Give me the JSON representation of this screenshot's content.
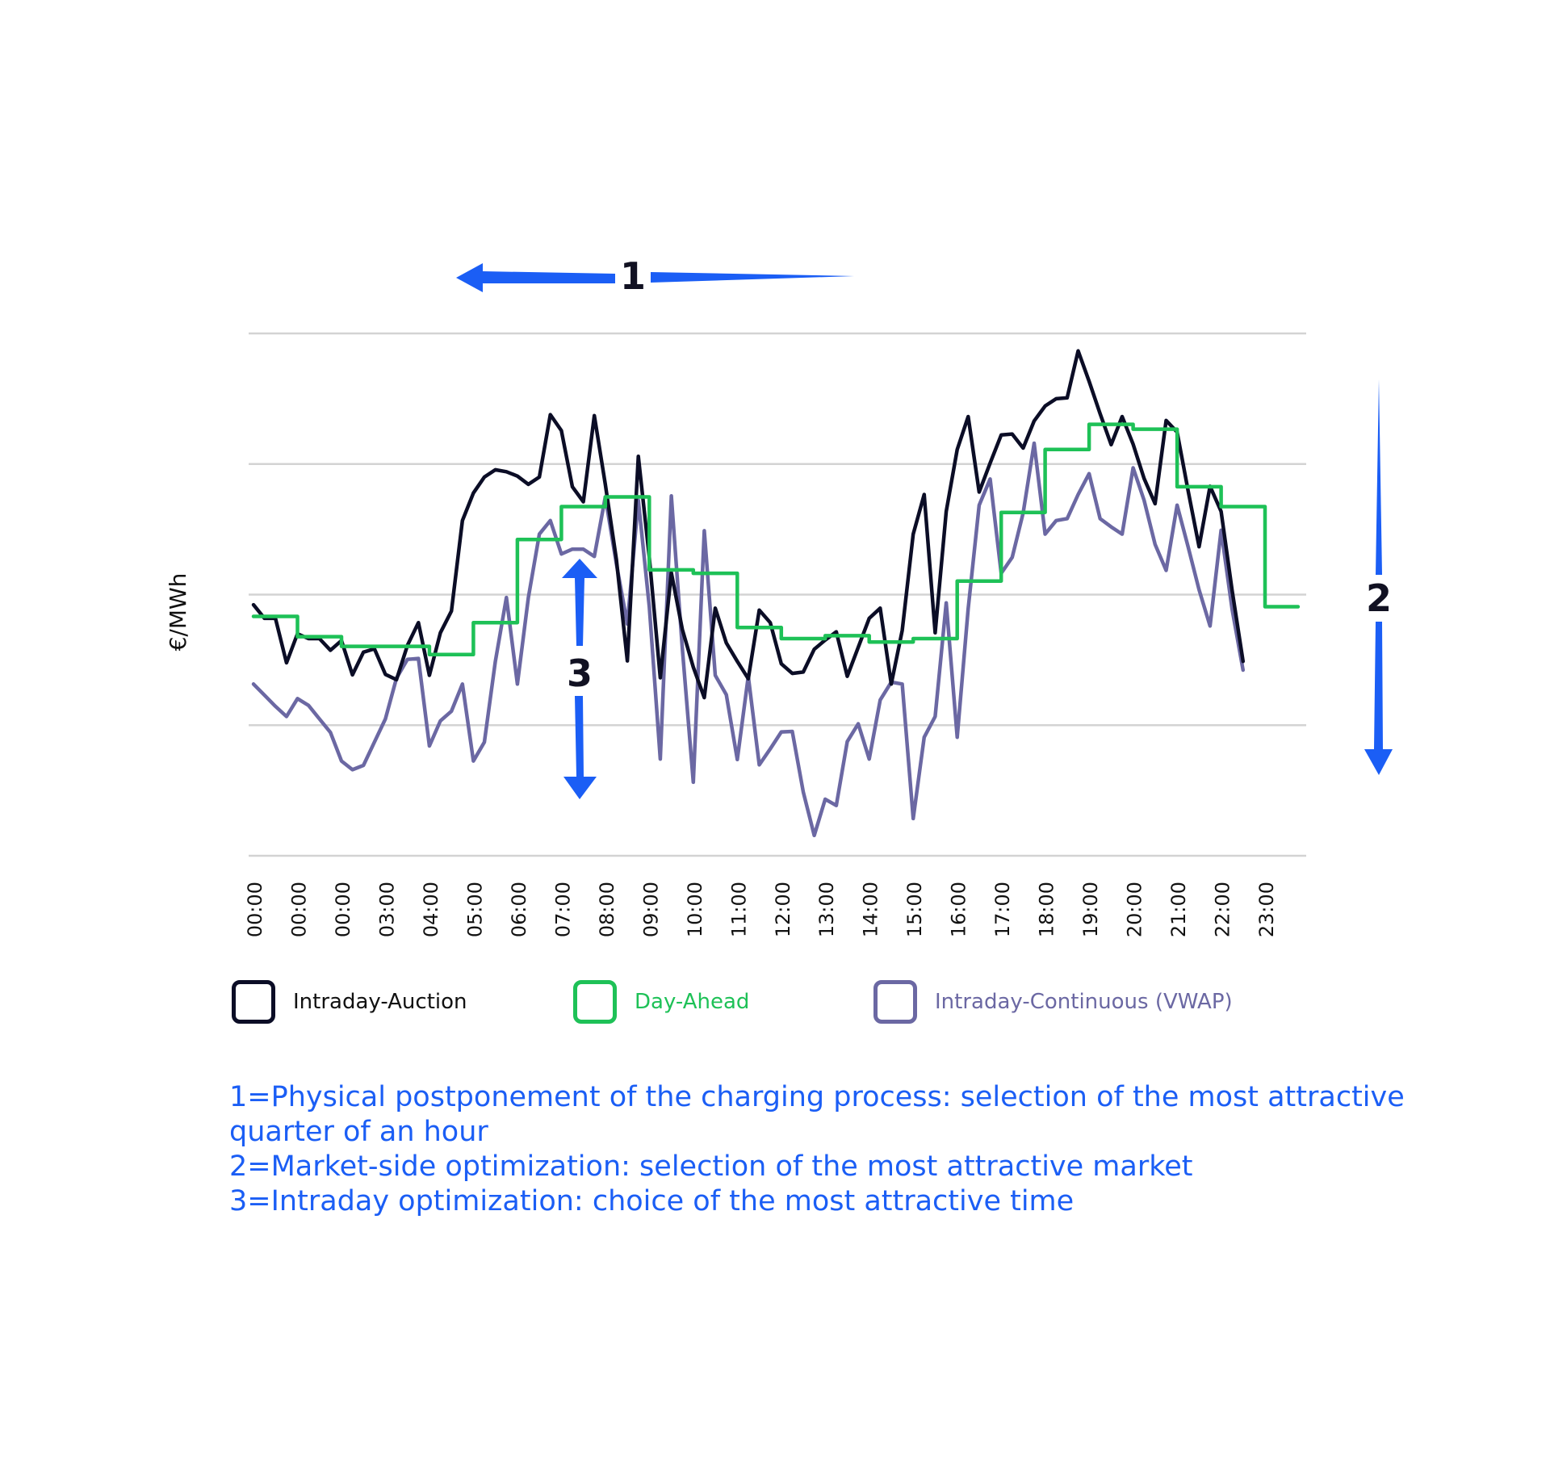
{
  "chart_data": {
    "type": "line",
    "ylabel": "€/MWh",
    "x_tick_labels": [
      "00:00",
      "00:00",
      "00:00",
      "03:00",
      "04:00",
      "05:00",
      "06:00",
      "07:00",
      "08:00",
      "09:00",
      "10:00",
      "11:00",
      "12:00",
      "13:00",
      "14:00",
      "15:00",
      "16:00",
      "17:00",
      "18:00",
      "19:00",
      "20:00",
      "21:00",
      "22:00",
      "23:00"
    ],
    "grid": "horizontal",
    "legend_position": "bottom",
    "series": [
      {
        "name": "Intraday-Auction",
        "color": "#0b0d26",
        "step": false,
        "values": [
          51.9,
          49.1,
          49.1,
          39.9,
          45.9,
          44.9,
          44.9,
          42.5,
          44.5,
          37.4,
          42.1,
          42.8,
          37.5,
          36.4,
          43.5,
          48.2,
          37.3,
          46.1,
          50.6,
          69.3,
          75.0,
          78.3,
          79.8,
          79.4,
          78.5,
          76.8,
          78.3,
          91.2,
          87.9,
          76.3,
          73.2,
          91.0,
          76.8,
          61.3,
          40.3,
          82.6,
          61.7,
          36.8,
          58.5,
          46.8,
          39.0,
          32.7,
          51.2,
          44.0,
          40.2,
          36.6,
          50.8,
          48.2,
          39.7,
          37.7,
          38.0,
          42.7,
          44.6,
          46.3,
          37.1,
          43.1,
          49.1,
          51.2,
          35.5,
          46.6,
          66.5,
          74.7,
          46.1,
          71.2,
          84.0,
          90.8,
          75.2,
          81.2,
          87.0,
          87.2,
          84.3,
          89.9,
          93.0,
          94.5,
          94.7,
          104.4,
          98.1,
          91.4,
          85.0,
          90.8,
          85.1,
          78.0,
          72.8,
          90.0,
          87.6,
          75.5,
          63.9,
          76.4,
          71.2,
          54.9,
          40.2
        ]
      },
      {
        "name": "Day-Ahead",
        "color": "#1ec157",
        "step": true,
        "values": [
          49.5,
          49.5,
          49.5,
          49.5,
          45.3,
          45.3,
          45.3,
          45.3,
          43.3,
          43.3,
          43.3,
          43.3,
          43.3,
          43.3,
          43.3,
          43.3,
          41.6,
          41.6,
          41.6,
          41.6,
          48.2,
          48.2,
          48.2,
          48.2,
          65.4,
          65.4,
          65.4,
          65.4,
          72.2,
          72.2,
          72.2,
          72.2,
          74.2,
          74.2,
          74.2,
          74.2,
          59.1,
          59.1,
          59.1,
          59.1,
          58.4,
          58.4,
          58.4,
          58.4,
          47.2,
          47.2,
          47.2,
          47.2,
          44.9,
          44.9,
          44.9,
          44.9,
          45.5,
          45.5,
          45.5,
          45.5,
          44.2,
          44.2,
          44.2,
          44.2,
          44.9,
          44.9,
          44.9,
          44.9,
          56.8,
          56.8,
          56.8,
          56.8,
          71.0,
          71.0,
          71.0,
          71.0,
          84.0,
          84.0,
          84.0,
          84.0,
          89.2,
          89.2,
          89.2,
          89.2,
          88.2,
          88.2,
          88.2,
          88.2,
          76.3,
          76.3,
          76.3,
          76.3,
          72.2,
          72.2,
          72.2,
          72.2,
          51.5,
          51.5,
          51.5,
          51.5
        ]
      },
      {
        "name": "Intraday-Continuous (VWAP)",
        "color": "#6b68a3",
        "step": false,
        "values": [
          35.5,
          33.2,
          30.9,
          28.8,
          32.5,
          31.1,
          28.3,
          25.5,
          19.6,
          17.8,
          18.7,
          23.5,
          28.3,
          36.7,
          40.6,
          40.8,
          22.7,
          27.9,
          29.9,
          35.5,
          19.6,
          23.5,
          40.2,
          53.4,
          35.5,
          53.4,
          66.5,
          69.3,
          62.4,
          63.4,
          63.4,
          61.9,
          74.2,
          60.4,
          47.9,
          73.5,
          51.5,
          20.0,
          74.4,
          42.9,
          15.2,
          67.2,
          37.3,
          33.3,
          19.9,
          37.1,
          18.8,
          22.1,
          25.6,
          25.7,
          13.2,
          4.2,
          11.7,
          10.4,
          23.6,
          27.3,
          20.0,
          32.2,
          35.9,
          35.5,
          7.7,
          24.5,
          28.8,
          52.3,
          24.5,
          51.1,
          72.5,
          77.9,
          58.4,
          61.7,
          70.9,
          85.3,
          66.5,
          69.3,
          69.7,
          74.7,
          79.0,
          69.7,
          68.0,
          66.5,
          80.2,
          73.5,
          64.4,
          59.0,
          72.5,
          63.9,
          55.0,
          47.5,
          67.3,
          51.0,
          38.4
        ]
      }
    ],
    "annotations": {
      "arrow1": "1",
      "arrow2": "2",
      "arrow3": "3"
    }
  },
  "legend": [
    {
      "label": "Intraday-Auction",
      "color": "#0b0d26"
    },
    {
      "label": "Day-Ahead",
      "color": "#1ec157"
    },
    {
      "label": "Intraday-Continuous (VWAP)",
      "color": "#6b68a3"
    }
  ],
  "notes": [
    "1=Physical postponement of the charging process: selection of the most attractive",
    "quarter of an hour",
    "2=Market-side optimization: selection of the most attractive market",
    "3=Intraday optimization: choice of the most attractive time"
  ],
  "accent_color": "#1b5ef5"
}
